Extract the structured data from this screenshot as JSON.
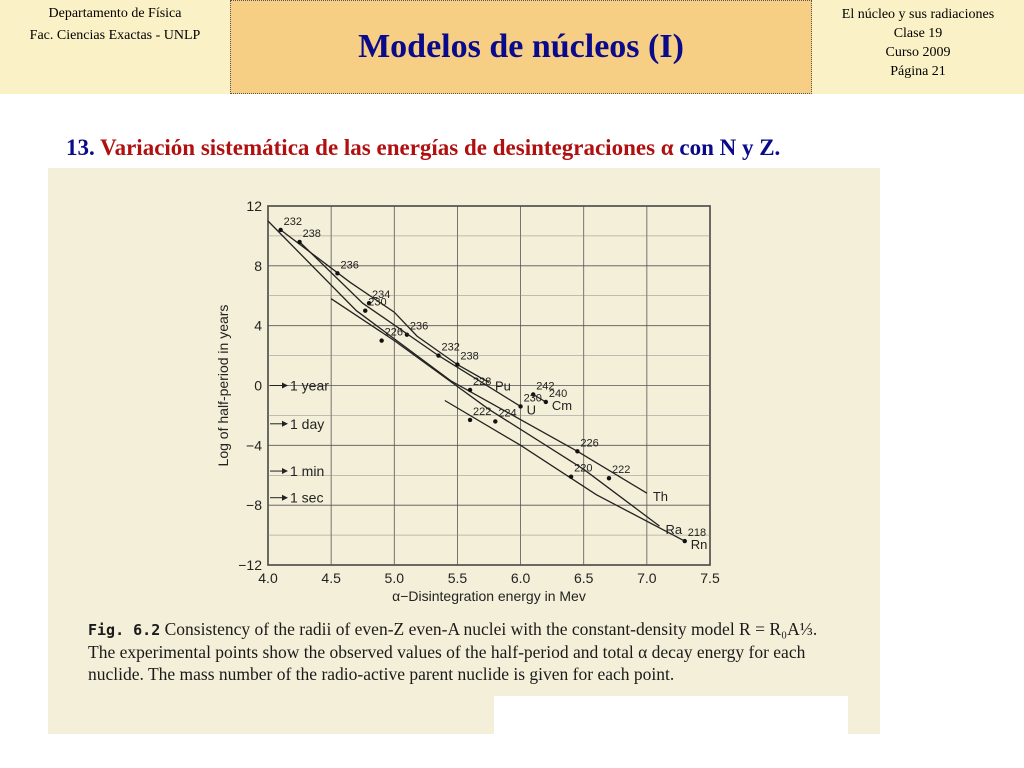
{
  "header": {
    "left_line1": "Departamento de Física",
    "left_line2": "Fac. Ciencias Exactas - UNLP",
    "title": "Modelos de núcleos (I)",
    "right_line1": "El núcleo y sus radiaciones",
    "right_line2": "Clase 19",
    "right_line3": "Curso 2009",
    "right_line4": "Página 21"
  },
  "subtitle": {
    "number": "13.",
    "text_red": "Variación sistemática de las energías de desintegraciones α",
    "text_blue": "con N y Z."
  },
  "caption": {
    "fig_label": "Fig. 6.2",
    "text": "Consistency of the radii of even-Z even-A nuclei with the constant-density model R = R₀A⅓. The experimental points show the observed values of the half-period and total α decay energy for each nuclide. The mass number of the radio-active parent nuclide is given for each point."
  },
  "chart_data": {
    "type": "line",
    "xlabel": "α−Disintegration energy in Mev",
    "ylabel": "Log of half-period in years",
    "xlim": [
      4.0,
      7.5
    ],
    "ylim": [
      -12,
      12
    ],
    "x_ticks": [
      "4.0",
      "4.5",
      "5.0",
      "5.5",
      "6.0",
      "6.5",
      "7.0",
      "7.5"
    ],
    "y_ticks": [
      "12",
      "8",
      "4",
      "0",
      "−4",
      "−8",
      "−12"
    ],
    "grid": true,
    "reference_lines": [
      {
        "label": "1 year",
        "y": 0
      },
      {
        "label": "1 day",
        "y": -2.56
      },
      {
        "label": "1 min",
        "y": -5.72
      },
      {
        "label": "1 sec",
        "y": -7.5
      }
    ],
    "series": [
      {
        "name": "Cm",
        "x": [
          6.1,
          6.2
        ],
        "y": [
          -0.6,
          -1.1
        ],
        "points": [
          {
            "label": "242",
            "x": 6.1,
            "y": -0.6
          },
          {
            "label": "240",
            "x": 6.2,
            "y": -1.1
          }
        ]
      },
      {
        "name": "Pu",
        "x": [
          4.1,
          4.65,
          5.0,
          5.18,
          5.5,
          5.75
        ],
        "y": [
          10.4,
          6.9,
          4.9,
          3.3,
          1.4,
          0.2
        ],
        "points": [
          {
            "label": "232",
            "x": 4.1,
            "y": 10.4
          },
          {
            "label": "236",
            "x": 5.1,
            "y": 3.4
          },
          {
            "label": "238",
            "x": 5.5,
            "y": 1.4
          }
        ]
      },
      {
        "name": "U",
        "x": [
          4.25,
          4.75,
          5.35,
          6.0
        ],
        "y": [
          9.6,
          5.5,
          2.0,
          -1.4
        ],
        "points": [
          {
            "label": "238",
            "x": 4.25,
            "y": 9.6
          },
          {
            "label": "234",
            "x": 4.8,
            "y": 5.5
          },
          {
            "label": "232",
            "x": 5.35,
            "y": 2.0
          },
          {
            "label": "230",
            "x": 6.0,
            "y": -1.4
          },
          {
            "label": "236",
            "x": 4.55,
            "y": 7.5
          }
        ]
      },
      {
        "name": "Th",
        "x": [
          4.0,
          4.7,
          5.45,
          6.45,
          7.0
        ],
        "y": [
          11.0,
          5.0,
          0.3,
          -4.4,
          -7.2
        ],
        "points": [
          {
            "label": "230",
            "x": 4.77,
            "y": 5.0
          },
          {
            "label": "228",
            "x": 5.6,
            "y": -0.3
          },
          {
            "label": "226",
            "x": 6.45,
            "y": -4.4
          }
        ]
      },
      {
        "name": "Ra",
        "x": [
          4.5,
          5.0,
          5.75,
          6.5,
          7.1
        ],
        "y": [
          5.8,
          3.0,
          -1.6,
          -5.6,
          -9.4
        ],
        "points": [
          {
            "label": "226",
            "x": 4.9,
            "y": 3.0
          },
          {
            "label": "224",
            "x": 5.8,
            "y": -2.4
          },
          {
            "label": "222",
            "x": 6.7,
            "y": -6.2
          }
        ]
      },
      {
        "name": "Rn",
        "x": [
          5.4,
          6.0,
          6.6,
          7.3
        ],
        "y": [
          -1.0,
          -4.0,
          -7.3,
          -10.4
        ],
        "points": [
          {
            "label": "222",
            "x": 5.6,
            "y": -2.3
          },
          {
            "label": "220",
            "x": 6.4,
            "y": -6.1
          },
          {
            "label": "218",
            "x": 7.3,
            "y": -10.4
          }
        ]
      }
    ]
  }
}
